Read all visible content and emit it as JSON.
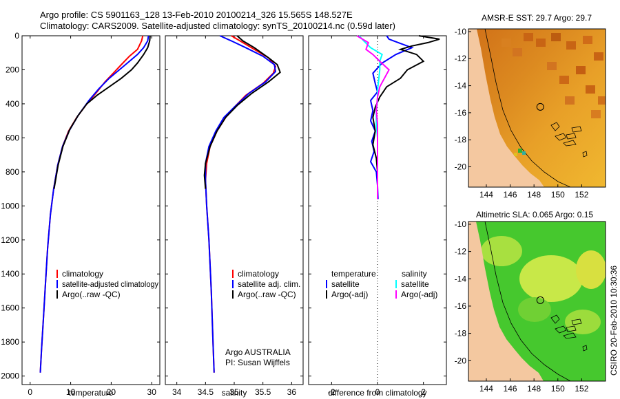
{
  "header": {
    "line1": "Argo profile: CS 5901163_128 13-Feb-2010 20100214_326 15.565S 148.527E",
    "line2": "Climatology: CARS2009. Satellite-adjusted climatology: synTS_20100214.nc (0.59d later)"
  },
  "colors": {
    "climatology": "#ff0000",
    "satellite": "#0000ff",
    "argo": "#000000",
    "satellite_salinity": "#00ffff",
    "argo_salinity": "#ff00ff"
  },
  "credit": "CSIRO 20-Feb-2010 10:30:36",
  "depth_axis": {
    "ticks": [
      "0",
      "200",
      "400",
      "600",
      "800",
      "1000",
      "1200",
      "1400",
      "1600",
      "1800",
      "2000"
    ]
  },
  "chart_data": [
    {
      "type": "line",
      "id": "temperature",
      "xlabel": "temperature",
      "ylabel": "",
      "xlim": [
        -2,
        32
      ],
      "ylim": [
        2050,
        0
      ],
      "xticks": [
        0,
        10,
        20,
        30
      ],
      "yticks": [
        0,
        200,
        400,
        600,
        800,
        1000,
        1200,
        1400,
        1600,
        1800,
        2000
      ],
      "series": [
        {
          "name": "climatology",
          "color": "#ff0000",
          "points": [
            [
              27.8,
              0
            ],
            [
              27.5,
              30
            ],
            [
              26.5,
              80
            ],
            [
              24.5,
              120
            ],
            [
              22.5,
              170
            ],
            [
              20.5,
              220
            ],
            [
              18.5,
              270
            ],
            [
              16.5,
              330
            ],
            [
              14,
              400
            ],
            [
              11.5,
              480
            ],
            [
              9.5,
              560
            ],
            [
              8,
              650
            ],
            [
              6.8,
              760
            ],
            [
              5.8,
              900
            ],
            [
              5,
              1050
            ],
            [
              4.3,
              1250
            ],
            [
              3.8,
              1450
            ],
            [
              3.3,
              1650
            ],
            [
              2.8,
              1850
            ],
            [
              2.5,
              1980
            ]
          ]
        },
        {
          "name": "satellite-adjusted climatology",
          "color": "#0000ff",
          "points": [
            [
              29.2,
              0
            ],
            [
              29,
              30
            ],
            [
              28,
              70
            ],
            [
              26.5,
              110
            ],
            [
              24.5,
              150
            ],
            [
              22,
              200
            ],
            [
              19.5,
              250
            ],
            [
              17,
              310
            ],
            [
              14.5,
              380
            ],
            [
              11.8,
              470
            ],
            [
              9.6,
              560
            ],
            [
              8,
              650
            ],
            [
              6.8,
              760
            ],
            [
              5.8,
              900
            ],
            [
              5,
              1050
            ],
            [
              4.3,
              1250
            ],
            [
              3.8,
              1450
            ],
            [
              3.3,
              1650
            ],
            [
              2.8,
              1850
            ],
            [
              2.5,
              1980
            ]
          ]
        },
        {
          "name": "Argo(..raw -QC)",
          "color": "#000000",
          "points": [
            [
              29.6,
              0
            ],
            [
              29.5,
              30
            ],
            [
              29,
              70
            ],
            [
              28,
              110
            ],
            [
              26.5,
              160
            ],
            [
              25,
              200
            ],
            [
              22.5,
              250
            ],
            [
              19.5,
              300
            ],
            [
              16.5,
              350
            ],
            [
              14,
              400
            ],
            [
              11.8,
              470
            ],
            [
              9.8,
              550
            ],
            [
              8.1,
              650
            ],
            [
              6.9,
              760
            ],
            [
              5.9,
              900
            ]
          ]
        }
      ],
      "legend": [
        "climatology",
        "satellite-adjusted climatology",
        "Argo(..raw -QC)"
      ]
    },
    {
      "type": "line",
      "id": "salinity",
      "xlabel": "salinity",
      "ylabel": "",
      "xlim": [
        33.8,
        36.2
      ],
      "ylim": [
        2050,
        0
      ],
      "xticks": [
        34,
        34.5,
        35,
        35.5,
        36
      ],
      "series": [
        {
          "name": "climatology",
          "color": "#ff0000",
          "points": [
            [
              34.95,
              0
            ],
            [
              35.1,
              30
            ],
            [
              35.3,
              70
            ],
            [
              35.6,
              130
            ],
            [
              35.72,
              180
            ],
            [
              35.68,
              220
            ],
            [
              35.5,
              280
            ],
            [
              35.2,
              350
            ],
            [
              35.0,
              420
            ],
            [
              34.85,
              480
            ],
            [
              34.7,
              560
            ],
            [
              34.58,
              650
            ],
            [
              34.52,
              750
            ],
            [
              34.5,
              850
            ],
            [
              34.52,
              1000
            ],
            [
              34.56,
              1200
            ],
            [
              34.6,
              1500
            ],
            [
              34.63,
              1800
            ],
            [
              34.65,
              1980
            ]
          ]
        },
        {
          "name": "satellite adj. clim.",
          "color": "#0000ff",
          "points": [
            [
              34.75,
              0
            ],
            [
              34.95,
              30
            ],
            [
              35.2,
              70
            ],
            [
              35.5,
              120
            ],
            [
              35.7,
              170
            ],
            [
              35.72,
              210
            ],
            [
              35.55,
              270
            ],
            [
              35.25,
              340
            ],
            [
              35.0,
              420
            ],
            [
              34.82,
              480
            ],
            [
              34.68,
              560
            ],
            [
              34.56,
              650
            ],
            [
              34.5,
              750
            ],
            [
              34.5,
              850
            ],
            [
              34.52,
              1000
            ],
            [
              34.56,
              1200
            ],
            [
              34.6,
              1500
            ],
            [
              34.63,
              1800
            ],
            [
              34.65,
              1980
            ]
          ]
        },
        {
          "name": "Argo(..raw -QC)",
          "color": "#000000",
          "points": [
            [
              35.05,
              0
            ],
            [
              35.15,
              30
            ],
            [
              35.35,
              70
            ],
            [
              35.6,
              130
            ],
            [
              35.75,
              170
            ],
            [
              35.8,
              215
            ],
            [
              35.6,
              270
            ],
            [
              35.3,
              340
            ],
            [
              35.05,
              410
            ],
            [
              34.85,
              480
            ],
            [
              34.7,
              560
            ],
            [
              34.58,
              650
            ],
            [
              34.5,
              750
            ],
            [
              34.48,
              820
            ],
            [
              34.5,
              900
            ]
          ]
        }
      ],
      "legend": [
        "climatology",
        "satellite adj. clim.",
        "Argo(..raw -QC)"
      ],
      "annotation": [
        "Argo AUSTRALIA",
        "PI: Susan Wijffels"
      ]
    },
    {
      "type": "line",
      "id": "difference",
      "xlabel": "difference from climatology",
      "ylabel": "",
      "xlim": [
        -3,
        3
      ],
      "ylim": [
        2050,
        0
      ],
      "xticks": [
        -2,
        0,
        2
      ],
      "series": [
        {
          "name": "temperature satellite",
          "color": "#0000ff",
          "points": [
            [
              0.4,
              0
            ],
            [
              0.5,
              20
            ],
            [
              0.9,
              40
            ],
            [
              1.5,
              70
            ],
            [
              0.8,
              110
            ],
            [
              0.2,
              160
            ],
            [
              -0.2,
              220
            ],
            [
              -0.1,
              280
            ],
            [
              0,
              330
            ],
            [
              -0.3,
              380
            ],
            [
              -0.2,
              440
            ],
            [
              -0.3,
              500
            ],
            [
              -0.1,
              560
            ],
            [
              -0.25,
              620
            ],
            [
              -0.15,
              680
            ],
            [
              -0.3,
              740
            ],
            [
              -0.05,
              800
            ],
            [
              0,
              880
            ],
            [
              0.02,
              960
            ]
          ]
        },
        {
          "name": "temperature Argo(-adj)",
          "color": "#000000",
          "points": [
            [
              1.8,
              0
            ],
            [
              2.7,
              20
            ],
            [
              2.2,
              40
            ],
            [
              1.5,
              60
            ],
            [
              1.0,
              80
            ],
            [
              1.7,
              110
            ],
            [
              2.0,
              150
            ],
            [
              1.3,
              200
            ],
            [
              1.0,
              250
            ],
            [
              0.4,
              300
            ],
            [
              0.1,
              360
            ],
            [
              -0.1,
              420
            ],
            [
              -0.2,
              480
            ],
            [
              -0.1,
              560
            ],
            [
              -0.2,
              640
            ],
            [
              -0.05,
              720
            ],
            [
              0,
              800
            ],
            [
              0,
              880
            ]
          ]
        },
        {
          "name": "salinity satellite",
          "color": "#00ffff",
          "points": [
            [
              -0.8,
              0
            ],
            [
              -0.6,
              30
            ],
            [
              -0.3,
              70
            ],
            [
              0.2,
              110
            ],
            [
              0.1,
              150
            ],
            [
              0.1,
              200
            ],
            [
              0.05,
              260
            ],
            [
              0,
              320
            ],
            [
              0,
              380
            ],
            [
              -0.05,
              440
            ],
            [
              -0.05,
              520
            ],
            [
              0,
              600
            ],
            [
              0,
              700
            ],
            [
              0,
              800
            ],
            [
              0,
              900
            ],
            [
              0,
              960
            ]
          ]
        },
        {
          "name": "salinity Argo(-adj)",
          "color": "#ff00ff",
          "points": [
            [
              -0.9,
              0
            ],
            [
              -0.4,
              40
            ],
            [
              -0.5,
              80
            ],
            [
              -0.2,
              110
            ],
            [
              0.1,
              150
            ],
            [
              0.5,
              200
            ],
            [
              0.3,
              250
            ],
            [
              0.1,
              300
            ],
            [
              0,
              360
            ],
            [
              -0.05,
              440
            ],
            [
              0,
              520
            ],
            [
              0,
              600
            ],
            [
              0,
              700
            ],
            [
              0,
              800
            ],
            [
              0,
              900
            ],
            [
              0,
              960
            ]
          ]
        }
      ],
      "legend_headers": [
        "temperature",
        "salinity"
      ],
      "legend_left": [
        "satellite",
        "Argo(-adj)"
      ],
      "legend_right": [
        "satellite",
        "Argo(-adj)"
      ]
    },
    {
      "type": "heatmap",
      "id": "sst-map",
      "title": "AMSR-E SST: 29.7 Argo: 29.7",
      "xlim": [
        142.5,
        154
      ],
      "ylim": [
        -21.5,
        -9.8
      ],
      "xticks": [
        144,
        146,
        148,
        150,
        152
      ],
      "yticks": [
        -10,
        -12,
        -14,
        -16,
        -18,
        -20
      ],
      "float_position": [
        148.527,
        -15.565
      ]
    },
    {
      "type": "heatmap",
      "id": "sla-map",
      "title": "Altimetric SLA: 0.065 Argo: 0.15",
      "xlim": [
        142.5,
        154
      ],
      "ylim": [
        -21.5,
        -9.8
      ],
      "xticks": [
        144,
        146,
        148,
        150,
        152
      ],
      "yticks": [
        -10,
        -12,
        -14,
        -16,
        -18,
        -20
      ],
      "float_position": [
        148.527,
        -15.565
      ]
    }
  ]
}
